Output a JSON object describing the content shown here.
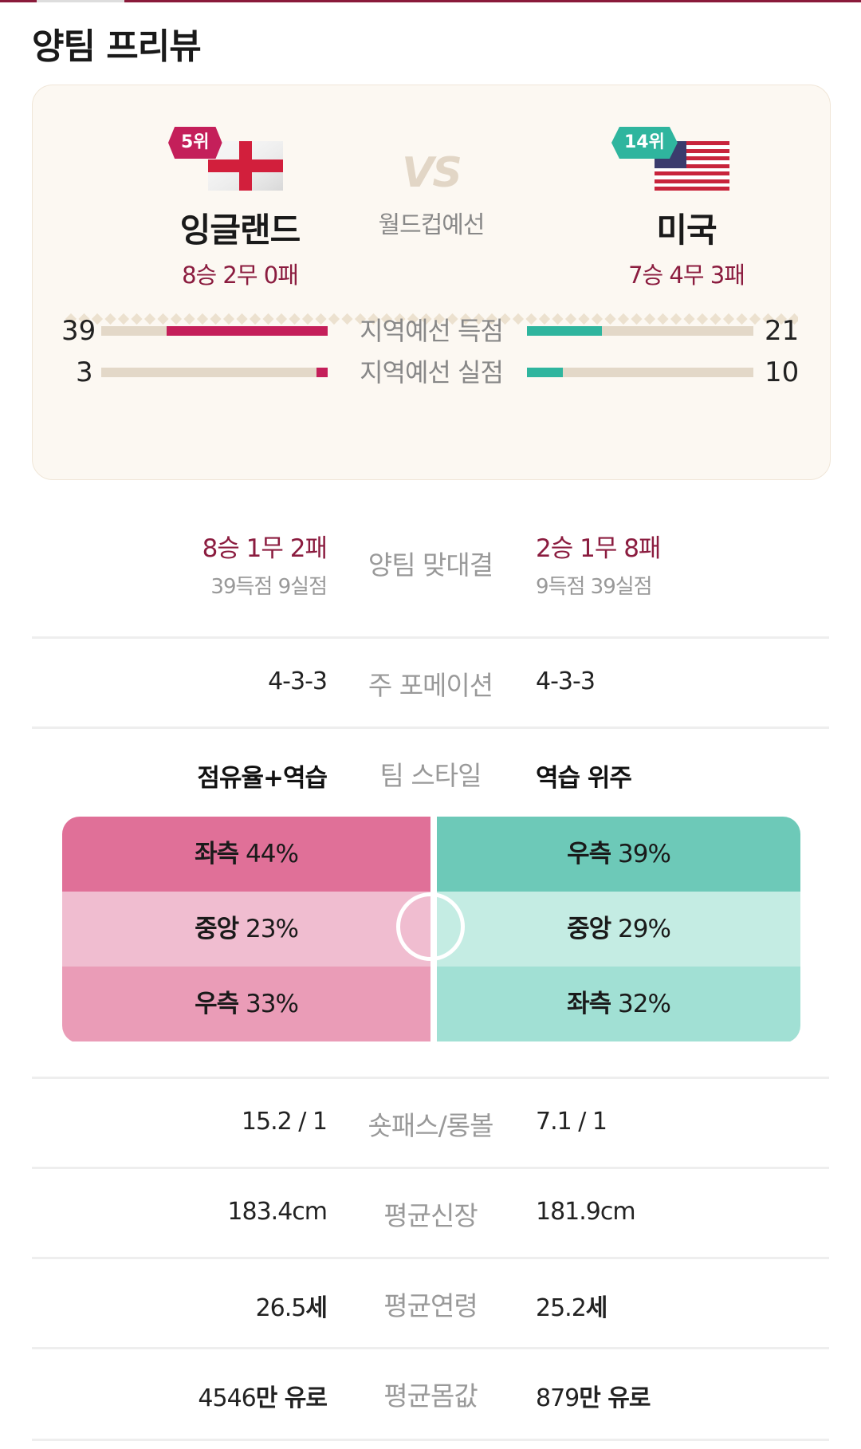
{
  "page": {
    "title": "양팀 프리뷰"
  },
  "colors": {
    "home": "#c41f5a",
    "away": "#2fb59e",
    "record": "#8b1c3f"
  },
  "match": {
    "vs": "VS",
    "competition": "월드컵예선",
    "home": {
      "rank": "5위",
      "name": "잉글랜드",
      "record": "8승 2무 0패",
      "flag_icon": "england-flag-icon"
    },
    "away": {
      "rank": "14위",
      "name": "미국",
      "record": "7승 4무 3패",
      "flag_icon": "usa-flag-icon"
    }
  },
  "regional_stats": [
    {
      "label": "지역예선 득점",
      "home": 39,
      "away": 21,
      "home_fill": 0.71,
      "away_fill": 0.33
    },
    {
      "label": "지역예선 실점",
      "home": 3,
      "away": 10,
      "home_fill": 0.05,
      "away_fill": 0.16
    }
  ],
  "head_to_head": {
    "label": "양팀 맞대결",
    "home_record": "8승 1무 2패",
    "home_goals": "39득점 9실점",
    "away_record": "2승 1무 8패",
    "away_goals": "9득점 39실점"
  },
  "formation": {
    "label": "주 포메이션",
    "home": "4-3-3",
    "away": "4-3-3"
  },
  "style": {
    "label": "팀 스타일",
    "home": "점유율+역습",
    "away": "역습 위주"
  },
  "attack_direction": {
    "home": [
      {
        "side": "좌측",
        "pct": "44%"
      },
      {
        "side": "중앙",
        "pct": "23%"
      },
      {
        "side": "우측",
        "pct": "33%"
      }
    ],
    "away": [
      {
        "side": "우측",
        "pct": "39%"
      },
      {
        "side": "중앙",
        "pct": "29%"
      },
      {
        "side": "좌측",
        "pct": "32%"
      }
    ]
  },
  "comparisons": [
    {
      "label": "숏패스/롱볼",
      "home": "15.2 / 1",
      "away": "7.1 / 1"
    },
    {
      "label": "평균신장",
      "home": "183.4cm",
      "away": "181.9cm"
    },
    {
      "label": "평균연령",
      "home_num": "26.5",
      "home_unit": "세",
      "away_num": "25.2",
      "away_unit": "세"
    },
    {
      "label": "평균몸값",
      "home_num": "4546",
      "home_unit": "만 유로",
      "away_num": "879",
      "away_unit": "만 유로"
    }
  ]
}
